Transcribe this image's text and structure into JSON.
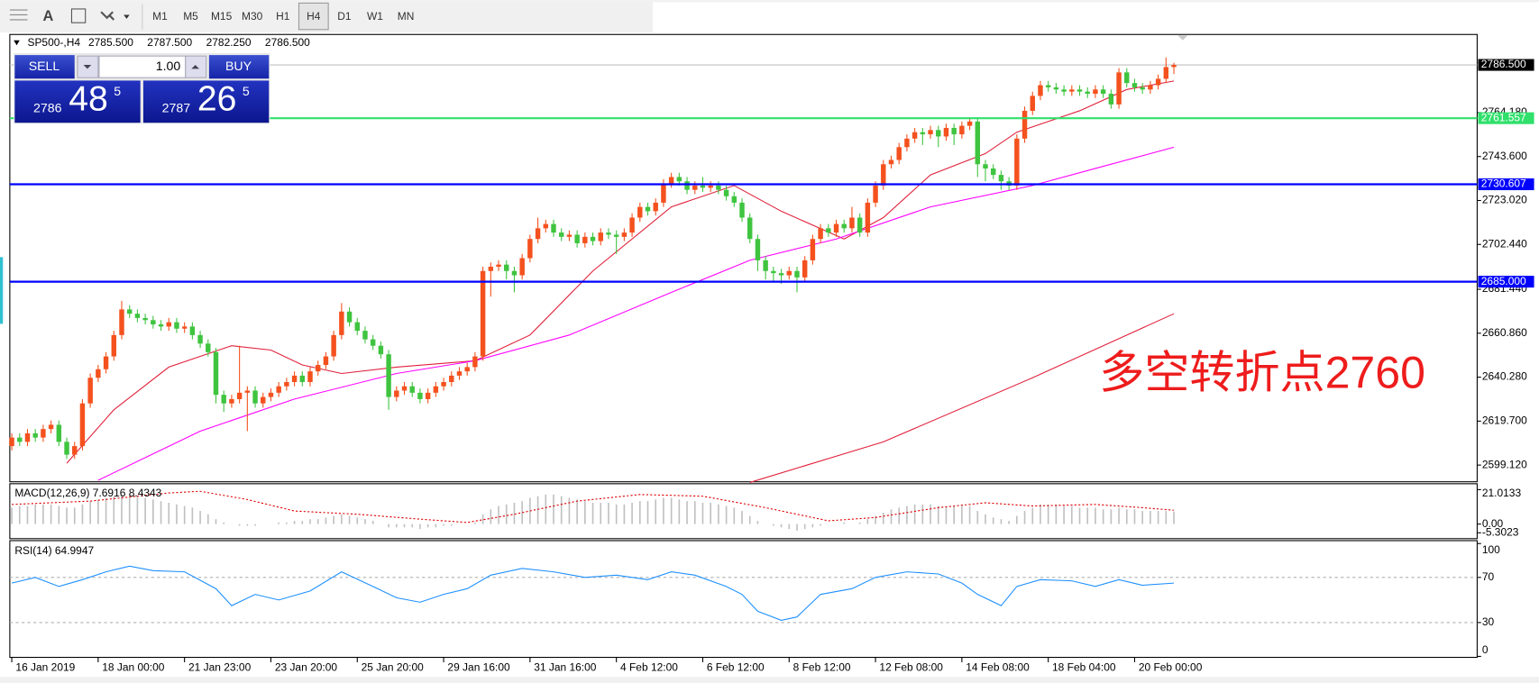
{
  "toolbar": {
    "text_tool": "A",
    "timeframes": [
      "M1",
      "M5",
      "M15",
      "M30",
      "H1",
      "H4",
      "D1",
      "W1",
      "MN"
    ],
    "active": "H4"
  },
  "trade_panel": {
    "sell": "SELL",
    "lot": "1.00",
    "buy": "BUY",
    "bid": [
      "2786",
      "48",
      "5"
    ],
    "ask": [
      "2787",
      "26",
      "5"
    ]
  },
  "chart_data": [
    {
      "type": "candlestick",
      "title": "SP500-,H4",
      "quote": [
        {
          "value": 2785.5,
          "label": "2785.500"
        },
        {
          "value": 2787.5,
          "label": "2787.500"
        },
        {
          "value": 2782.25,
          "label": "2782.250"
        },
        {
          "value": 2786.5,
          "label": "2786.500"
        }
      ],
      "categories": [
        "16 Jan 2019",
        null,
        null,
        null,
        null,
        null,
        null,
        null,
        null,
        null,
        null,
        "18 Jan 00:00",
        null,
        null,
        null,
        null,
        null,
        null,
        null,
        null,
        null,
        null,
        "21 Jan 23:00",
        null,
        null,
        null,
        null,
        null,
        null,
        null,
        null,
        null,
        null,
        "23 Jan 20:00",
        null,
        null,
        null,
        null,
        null,
        null,
        null,
        null,
        null,
        null,
        "25 Jan 20:00",
        null,
        null,
        null,
        null,
        null,
        null,
        null,
        null,
        null,
        null,
        "29 Jan 16:00",
        null,
        null,
        null,
        null,
        null,
        null,
        null,
        null,
        null,
        null,
        "31 Jan 16:00",
        null,
        null,
        null,
        null,
        null,
        null,
        null,
        null,
        null,
        null,
        "4 Feb 12:00",
        null,
        null,
        null,
        null,
        null,
        null,
        null,
        null,
        null,
        null,
        "6 Feb 12:00",
        null,
        null,
        null,
        null,
        null,
        null,
        null,
        null,
        null,
        null,
        "8 Feb 12:00",
        null,
        null,
        null,
        null,
        null,
        null,
        null,
        null,
        null,
        null,
        "12 Feb 08:00",
        null,
        null,
        null,
        null,
        null,
        null,
        null,
        null,
        null,
        null,
        "14 Feb 08:00",
        null,
        null,
        null,
        null,
        null,
        null,
        null,
        null,
        null,
        null,
        "18 Feb 04:00",
        null,
        null,
        null,
        null,
        null,
        null,
        null,
        null,
        null,
        null,
        "20 Feb 00:00",
        null,
        null,
        null,
        null,
        null
      ],
      "open": [
        2608,
        2612,
        2610,
        2614,
        2612,
        2616,
        2618,
        2610,
        2604,
        2608,
        2628,
        2640,
        2644,
        2650,
        2660,
        2672,
        2670,
        2668,
        2667,
        2665,
        2664,
        2666,
        2663,
        2664,
        2660,
        2656,
        2652,
        2632,
        2628,
        2630,
        2633,
        2634,
        2628,
        2631,
        2633,
        2636,
        2638,
        2641,
        2638,
        2643,
        2646,
        2650,
        2660,
        2671,
        2666,
        2662,
        2658,
        2655,
        2651,
        2631,
        2634,
        2636,
        2633,
        2630,
        2633,
        2636,
        2638,
        2641,
        2643,
        2645,
        2650,
        2690,
        2692,
        2693,
        2690,
        2688,
        2696,
        2705,
        2710,
        2712,
        2708,
        2706,
        2707,
        2703,
        2706,
        2704,
        2708,
        2707,
        2706,
        2708,
        2715,
        2720,
        2718,
        2722,
        2731,
        2734,
        2732,
        2728,
        2730,
        2729,
        2730,
        2728,
        2725,
        2722,
        2715,
        2705,
        2695,
        2690,
        2689,
        2688,
        2690,
        2687,
        2695,
        2705,
        2710,
        2708,
        2712,
        2710,
        2715,
        2708,
        2722,
        2730,
        2740,
        2742,
        2748,
        2752,
        2755,
        2754,
        2756,
        2753,
        2757,
        2754,
        2758,
        2760,
        2740,
        2738,
        2735,
        2732,
        2730,
        2752,
        2765,
        2772,
        2777,
        2776,
        2775,
        2774,
        2775,
        2774,
        2773,
        2775,
        2773,
        2768,
        2783,
        2778,
        2776,
        2775,
        2777,
        2780,
        2785.5
      ],
      "high": [
        2614,
        2614,
        2616,
        2616,
        2618,
        2620,
        2620,
        2612,
        2610,
        2630,
        2642,
        2646,
        2652,
        2662,
        2676,
        2674,
        2672,
        2670,
        2669,
        2667,
        2668,
        2668,
        2666,
        2666,
        2662,
        2658,
        2654,
        2634,
        2632,
        2655,
        2636,
        2636,
        2633,
        2635,
        2638,
        2640,
        2643,
        2643,
        2645,
        2648,
        2652,
        2662,
        2675,
        2673,
        2668,
        2664,
        2660,
        2657,
        2653,
        2636,
        2638,
        2638,
        2635,
        2635,
        2638,
        2640,
        2643,
        2645,
        2647,
        2652,
        2692,
        2694,
        2695,
        2695,
        2692,
        2698,
        2707,
        2715,
        2714,
        2714,
        2710,
        2709,
        2709,
        2708,
        2708,
        2710,
        2710,
        2709,
        2710,
        2717,
        2722,
        2722,
        2724,
        2733,
        2736,
        2736,
        2734,
        2732,
        2734,
        2732,
        2732,
        2730,
        2727,
        2724,
        2717,
        2707,
        2697,
        2692,
        2691,
        2692,
        2692,
        2697,
        2707,
        2712,
        2712,
        2714,
        2714,
        2720,
        2717,
        2724,
        2732,
        2742,
        2744,
        2750,
        2754,
        2757,
        2757,
        2758,
        2758,
        2759,
        2759,
        2760,
        2762,
        2762,
        2742,
        2740,
        2737,
        2734,
        2754,
        2767,
        2774,
        2779,
        2779,
        2778,
        2777,
        2777,
        2777,
        2776,
        2777,
        2777,
        2775,
        2785,
        2785,
        2780,
        2778,
        2779,
        2782,
        2790,
        2787.5
      ],
      "low": [
        2606,
        2608,
        2608,
        2610,
        2610,
        2614,
        2608,
        2602,
        2602,
        2606,
        2626,
        2638,
        2642,
        2648,
        2658,
        2668,
        2666,
        2665,
        2663,
        2662,
        2662,
        2661,
        2661,
        2658,
        2654,
        2650,
        2628,
        2624,
        2626,
        2628,
        2615,
        2626,
        2626,
        2629,
        2631,
        2634,
        2636,
        2636,
        2636,
        2641,
        2644,
        2648,
        2658,
        2664,
        2660,
        2656,
        2653,
        2649,
        2625,
        2629,
        2632,
        2631,
        2628,
        2628,
        2631,
        2634,
        2636,
        2639,
        2641,
        2643,
        2648,
        2678,
        2690,
        2686,
        2680,
        2686,
        2694,
        2703,
        2708,
        2706,
        2704,
        2704,
        2701,
        2701,
        2702,
        2702,
        2705,
        2698,
        2704,
        2706,
        2713,
        2716,
        2716,
        2720,
        2729,
        2730,
        2726,
        2726,
        2727,
        2727,
        2726,
        2723,
        2720,
        2713,
        2703,
        2690,
        2686,
        2685,
        2684,
        2686,
        2680,
        2685,
        2693,
        2703,
        2706,
        2706,
        2708,
        2708,
        2706,
        2706,
        2720,
        2728,
        2738,
        2740,
        2746,
        2750,
        2749,
        2752,
        2748,
        2751,
        2749,
        2752,
        2756,
        2734,
        2732,
        2733,
        2728,
        2728,
        2728,
        2750,
        2763,
        2770,
        2774,
        2773,
        2772,
        2772,
        2772,
        2771,
        2771,
        2771,
        2766,
        2766,
        2776,
        2774,
        2773,
        2773,
        2775,
        2778,
        2782.25
      ],
      "close": [
        2612,
        2610,
        2614,
        2612,
        2616,
        2618,
        2610,
        2604,
        2608,
        2628,
        2640,
        2644,
        2650,
        2660,
        2672,
        2670,
        2668,
        2667,
        2665,
        2664,
        2666,
        2663,
        2664,
        2660,
        2656,
        2652,
        2632,
        2628,
        2630,
        2633,
        2634,
        2628,
        2631,
        2633,
        2636,
        2638,
        2641,
        2638,
        2643,
        2646,
        2650,
        2660,
        2671,
        2666,
        2662,
        2658,
        2655,
        2651,
        2631,
        2634,
        2636,
        2633,
        2630,
        2633,
        2636,
        2638,
        2641,
        2643,
        2645,
        2650,
        2690,
        2692,
        2693,
        2690,
        2688,
        2696,
        2705,
        2710,
        2712,
        2708,
        2706,
        2707,
        2703,
        2706,
        2704,
        2708,
        2707,
        2706,
        2708,
        2715,
        2720,
        2718,
        2722,
        2731,
        2734,
        2732,
        2728,
        2730,
        2729,
        2730,
        2728,
        2725,
        2722,
        2715,
        2705,
        2695,
        2690,
        2689,
        2688,
        2690,
        2687,
        2695,
        2705,
        2710,
        2708,
        2712,
        2710,
        2715,
        2708,
        2722,
        2730,
        2740,
        2742,
        2748,
        2752,
        2755,
        2754,
        2756,
        2753,
        2757,
        2754,
        2758,
        2760,
        2740,
        2738,
        2735,
        2732,
        2730,
        2752,
        2765,
        2772,
        2777,
        2776,
        2775,
        2774,
        2775,
        2774,
        2773,
        2775,
        2773,
        2768,
        2783,
        2778,
        2776,
        2775,
        2777,
        2780,
        2785.5,
        2786.5
      ],
      "up_color": "#f4511e",
      "down_color": "#3fc43f",
      "ylim": [
        2591.3,
        2800.3
      ],
      "yticks": [
        {
          "value": 2764.18,
          "label": "2764.180"
        },
        {
          "value": 2743.6,
          "label": "2743.600"
        },
        {
          "value": 2723.02,
          "label": "2723.020"
        },
        {
          "value": 2702.44,
          "label": "2702.440"
        },
        {
          "value": 2681.44,
          "label": "2681.440"
        },
        {
          "value": 2660.86,
          "label": "2660.860"
        },
        {
          "value": 2640.28,
          "label": "2640.280"
        },
        {
          "value": 2619.7,
          "label": "2619.700"
        },
        {
          "value": 2599.12,
          "label": "2599.120"
        }
      ],
      "lines": [
        {
          "value": 2761.557,
          "label": "2761.557",
          "color": "#2fe06a"
        },
        {
          "value": 2730.607,
          "label": "2730.607",
          "color": "#0000ff"
        },
        {
          "value": 2685,
          "label": "2685.000",
          "color": "#0000ff"
        }
      ],
      "current": {
        "value": 2786.5,
        "label": "2786.500",
        "color": "#c0c0c0"
      },
      "moving_averages": [
        {
          "color": "#e0203a",
          "x": [
            7,
            13,
            20,
            28,
            33,
            37,
            42,
            49,
            59,
            66,
            74,
            84,
            92,
            98,
            106,
            111,
            117,
            124,
            128,
            136,
            142,
            148
          ],
          "values": [
            2600,
            2625,
            2645,
            2655,
            2653,
            2646,
            2642,
            2645,
            2648,
            2660,
            2690,
            2720,
            2730,
            2718,
            2705,
            2715,
            2735,
            2745,
            2755,
            2765,
            2775,
            2779
          ]
        },
        {
          "color": "#ff00ff",
          "x": [
            11,
            24,
            36,
            49,
            59,
            71,
            84,
            94,
            105,
            117,
            130,
            138,
            148
          ],
          "values": [
            2592,
            2615,
            2630,
            2642,
            2648,
            2660,
            2680,
            2695,
            2705,
            2720,
            2730,
            2738,
            2748
          ]
        },
        {
          "color": "#e0203a",
          "x": [
            94,
            111,
            130,
            148
          ],
          "values": [
            2591,
            2610,
            2640,
            2670
          ]
        }
      ],
      "annotation": {
        "text": "多空转折点2760",
        "color": "#ee1c1c"
      }
    },
    {
      "type": "bar",
      "title": "MACD(12,26,9) 7.6916 8.4343",
      "color": "#c0c0c0",
      "values": [
        10,
        11,
        11,
        12,
        12,
        12,
        11,
        10,
        10,
        12,
        14,
        15,
        16,
        17,
        18,
        18,
        17,
        16,
        15,
        14,
        13,
        12,
        11,
        10,
        8,
        6,
        3,
        1,
        0,
        -1,
        -1,
        -1,
        0,
        0,
        1,
        1,
        2,
        2,
        3,
        3,
        4,
        5,
        6,
        5,
        4,
        3,
        2,
        0,
        -2,
        -2,
        -2,
        -2,
        -3,
        -2,
        -2,
        -1,
        -1,
        0,
        0,
        1,
        6,
        9,
        11,
        12,
        13,
        14,
        16,
        17,
        18,
        18,
        17,
        16,
        15,
        14,
        13,
        13,
        13,
        12,
        12,
        13,
        14,
        14,
        15,
        16,
        16,
        15,
        14,
        14,
        13,
        13,
        12,
        11,
        10,
        8,
        5,
        2,
        0,
        -1,
        -2,
        -3,
        -4,
        -3,
        -2,
        -1,
        0,
        0,
        1,
        0,
        1,
        3,
        5,
        7,
        9,
        10,
        11,
        12,
        12,
        12,
        11,
        11,
        11,
        11,
        11,
        8,
        6,
        4,
        3,
        2,
        5,
        8,
        10,
        12,
        12,
        12,
        11,
        11,
        10,
        10,
        10,
        9,
        9,
        10,
        9,
        9,
        8,
        8,
        8,
        8,
        7.6916
      ],
      "signal": {
        "color": "#dd0000",
        "x": [
          0,
          10,
          20,
          24,
          30,
          36,
          44,
          52,
          58,
          64,
          72,
          80,
          88,
          96,
          104,
          110,
          118,
          124,
          130,
          138,
          144,
          148
        ],
        "values": [
          12,
          14,
          19,
          20,
          15,
          8,
          6,
          3,
          1,
          6,
          14,
          18,
          17,
          10,
          2,
          4,
          10,
          13,
          11,
          12,
          10,
          8.4343
        ]
      },
      "ylim": [
        -5.3023,
        21.0133
      ],
      "yticks": [
        21.0133,
        {
          "value": 0,
          "label": "0.00"
        },
        -5.3023
      ]
    },
    {
      "type": "line",
      "title": "RSI(14) 64.9947",
      "color": "#1e90ff",
      "x": [
        0,
        3,
        6,
        9,
        12,
        15,
        18,
        22,
        26,
        28,
        31,
        34,
        38,
        42,
        46,
        49,
        52,
        55,
        58,
        61,
        65,
        69,
        73,
        77,
        81,
        84,
        87,
        91,
        93,
        95,
        98,
        100,
        103,
        107,
        110,
        114,
        118,
        121,
        123,
        126,
        128,
        131,
        135,
        138,
        141,
        144,
        148
      ],
      "values": [
        65,
        70,
        62,
        68,
        75,
        80,
        76,
        75,
        60,
        45,
        55,
        50,
        58,
        75,
        62,
        52,
        48,
        55,
        60,
        72,
        78,
        75,
        70,
        72,
        68,
        75,
        72,
        62,
        55,
        40,
        32,
        35,
        55,
        60,
        70,
        75,
        73,
        65,
        55,
        45,
        62,
        68,
        67,
        62,
        68,
        63,
        64.9947
      ],
      "ylim": [
        0,
        100
      ],
      "yticks": [
        100,
        70,
        30,
        0
      ],
      "levels": [
        30,
        70
      ],
      "level_color": "#b0b0b0"
    }
  ]
}
